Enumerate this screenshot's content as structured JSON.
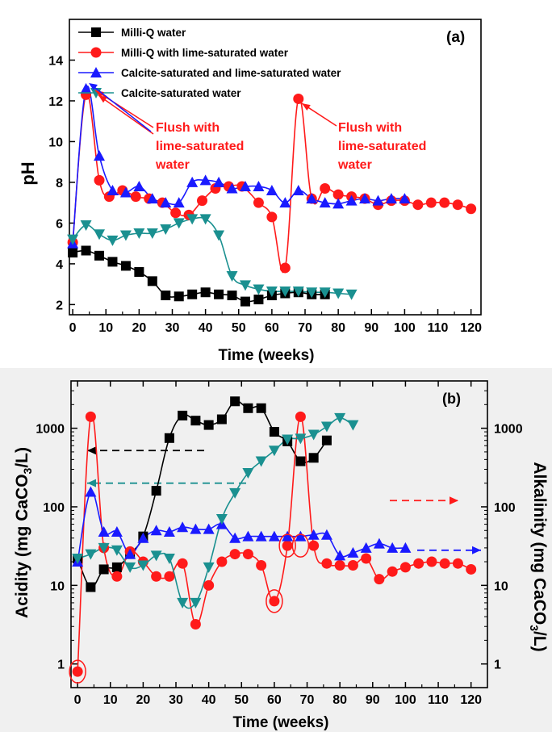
{
  "chart_data": [
    {
      "type": "line",
      "panel_label": "(a)",
      "xlabel": "Time (weeks)",
      "ylabel": "pH",
      "xlim": [
        -1,
        123
      ],
      "ylim": [
        1.5,
        16
      ],
      "xticks": [
        0,
        10,
        20,
        30,
        40,
        50,
        60,
        70,
        80,
        90,
        100,
        110,
        120
      ],
      "yticks": [
        2,
        4,
        6,
        8,
        10,
        12,
        14
      ],
      "legend_placement": "top-left",
      "series": [
        {
          "name": "Milli-Q water",
          "color": "#000000",
          "marker": "square",
          "x": [
            0,
            4,
            8,
            12,
            16,
            20,
            24,
            28,
            32,
            36,
            40,
            44,
            48,
            52,
            56,
            60,
            64,
            68,
            72,
            76
          ],
          "y": [
            4.55,
            4.65,
            4.4,
            4.1,
            3.9,
            3.6,
            3.15,
            2.45,
            2.4,
            2.5,
            2.6,
            2.5,
            2.45,
            2.15,
            2.25,
            2.45,
            2.55,
            2.6,
            2.5,
            2.5
          ]
        },
        {
          "name": "Milli-Q with lime-saturated water",
          "color": "#ff1a1a",
          "marker": "circle",
          "x": [
            0,
            4,
            8,
            11,
            15,
            19,
            23,
            27,
            31,
            35,
            39,
            43,
            47,
            51,
            56,
            60,
            64,
            68,
            72,
            76,
            80,
            84,
            88,
            92,
            96,
            100,
            104,
            108,
            112,
            116,
            120
          ],
          "y": [
            5.05,
            12.3,
            8.1,
            7.3,
            7.6,
            7.3,
            7.2,
            7.0,
            6.5,
            6.4,
            7.1,
            7.7,
            7.8,
            7.8,
            7.0,
            6.3,
            3.8,
            12.1,
            7.2,
            7.7,
            7.4,
            7.3,
            7.2,
            6.9,
            7.1,
            7.1,
            6.9,
            7.0,
            7.0,
            6.9,
            6.7
          ]
        },
        {
          "name": "Calcite-saturated and lime-saturated water",
          "color": "#1a1aff",
          "marker": "triangle-up",
          "x": [
            0,
            4,
            8,
            12,
            16,
            20,
            24,
            28,
            32,
            36,
            40,
            44,
            48,
            52,
            56,
            60,
            64,
            68,
            72,
            76,
            80,
            84,
            88,
            92,
            96,
            100
          ],
          "y": [
            5.0,
            12.6,
            9.3,
            7.6,
            7.5,
            7.8,
            7.2,
            7.0,
            7.0,
            8.0,
            8.1,
            8.0,
            7.7,
            7.8,
            7.8,
            7.6,
            7.0,
            7.6,
            7.2,
            7.0,
            6.95,
            7.1,
            7.2,
            7.1,
            7.2,
            7.2
          ]
        },
        {
          "name": "Calcite-saturated water",
          "color": "#1a9090",
          "marker": "triangle-down",
          "x": [
            0,
            4,
            8,
            12,
            16,
            20,
            24,
            28,
            32,
            36,
            40,
            44,
            48,
            52,
            56,
            60,
            64,
            68,
            72,
            76,
            80,
            84
          ],
          "y": [
            5.2,
            5.9,
            5.45,
            5.15,
            5.4,
            5.5,
            5.5,
            5.7,
            6.0,
            6.2,
            6.2,
            5.4,
            3.4,
            2.95,
            2.75,
            2.65,
            2.65,
            2.65,
            2.6,
            2.6,
            2.55,
            2.5
          ]
        }
      ],
      "annotations": [
        "Flush with\nlime-saturated\nwater",
        "Flush with\nlime-saturated\nwater"
      ]
    },
    {
      "type": "line",
      "panel_label": "(b)",
      "xlabel": "Time (weeks)",
      "ylabel_left": "Acidity (mg CaCO3/L)",
      "ylabel_right": "Alkalinity (mg CaCO3/L)",
      "yscale": "log",
      "xlim": [
        -2,
        125
      ],
      "ylim": [
        0.5,
        4000
      ],
      "xticks": [
        0,
        10,
        20,
        30,
        40,
        50,
        60,
        70,
        80,
        90,
        100,
        110,
        120
      ],
      "yticks": [
        1,
        10,
        100,
        1000
      ],
      "series": [
        {
          "name": "Milli-Q water",
          "color": "#000000",
          "marker": "square",
          "x": [
            0,
            4,
            8,
            12,
            16,
            20,
            24,
            28,
            32,
            36,
            40,
            44,
            48,
            52,
            56,
            60,
            64,
            68,
            72,
            76
          ],
          "y": [
            22,
            9.5,
            16,
            17,
            25,
            42,
            160,
            750,
            1450,
            1250,
            1100,
            1300,
            2200,
            1800,
            1800,
            900,
            680,
            380,
            420,
            700
          ]
        },
        {
          "name": "Milli-Q with lime-saturated water",
          "color": "#ff1a1a",
          "marker": "circle",
          "x": [
            0,
            4,
            8,
            12,
            16,
            20,
            24,
            28,
            32,
            36,
            40,
            44,
            48,
            52,
            56,
            60,
            64,
            68,
            72,
            76,
            80,
            84,
            88,
            92,
            96,
            100,
            104,
            108,
            112,
            116,
            120
          ],
          "y": [
            0.8,
            1400,
            30,
            13,
            27,
            20,
            13,
            13,
            19,
            3.2,
            10,
            20,
            25,
            25,
            18,
            6.3,
            32,
            1400,
            32,
            19,
            18,
            18,
            22,
            12,
            15,
            17,
            19,
            20,
            19,
            19,
            16
          ]
        },
        {
          "name": "Calcite-saturated and lime-saturated water",
          "color": "#1a1aff",
          "marker": "triangle-up",
          "x": [
            0,
            4,
            8,
            12,
            16,
            20,
            24,
            28,
            32,
            36,
            40,
            44,
            48,
            52,
            56,
            60,
            64,
            68,
            72,
            76,
            80,
            84,
            88,
            92,
            96,
            100
          ],
          "y": [
            20,
            155,
            48,
            48,
            25,
            40,
            50,
            48,
            55,
            52,
            52,
            60,
            40,
            42,
            42,
            42,
            42,
            42,
            44,
            44,
            24,
            26,
            30,
            34,
            30,
            30
          ]
        },
        {
          "name": "Calcite-saturated water",
          "color": "#1a9090",
          "marker": "triangle-down",
          "x": [
            0,
            4,
            8,
            12,
            16,
            20,
            24,
            28,
            32,
            36,
            40,
            44,
            48,
            52,
            56,
            60,
            64,
            68,
            72,
            76,
            80,
            84
          ],
          "y": [
            22,
            25,
            30,
            28,
            17,
            18,
            24,
            22,
            6,
            6,
            17,
            70,
            150,
            270,
            380,
            520,
            720,
            740,
            830,
            1050,
            1350,
            1100
          ]
        }
      ],
      "right_axis_ticks": [
        "1000",
        "100",
        "10",
        "1"
      ],
      "arrow_annotations": [
        "left",
        "left",
        "right",
        "right"
      ]
    }
  ]
}
